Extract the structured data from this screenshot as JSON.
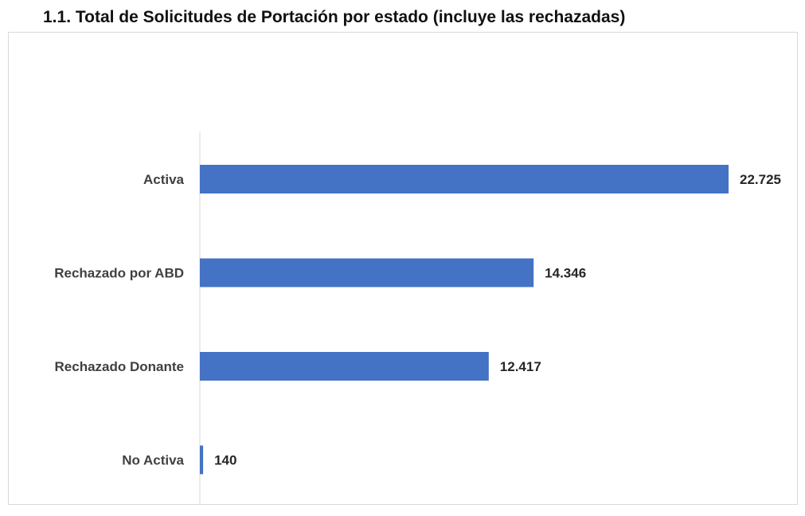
{
  "page": {
    "title": "1.1.  Total de Solicitudes de Portación por estado (incluye las rechazadas)"
  },
  "chart_data": {
    "type": "bar",
    "orientation": "horizontal",
    "categories": [
      "Activa",
      "Rechazado por ABD",
      "Rechazado Donante",
      "No Activa"
    ],
    "values": [
      22725,
      14346,
      12417,
      140
    ],
    "value_labels": [
      "22.725",
      "14.346",
      "12.417",
      "140"
    ],
    "xlim": [
      0,
      22725
    ],
    "grid": false,
    "legend": "none",
    "colors": {
      "bar": "#4472C4",
      "axis": "#d9d9d9",
      "label": "#404040",
      "value": "#262626"
    }
  }
}
